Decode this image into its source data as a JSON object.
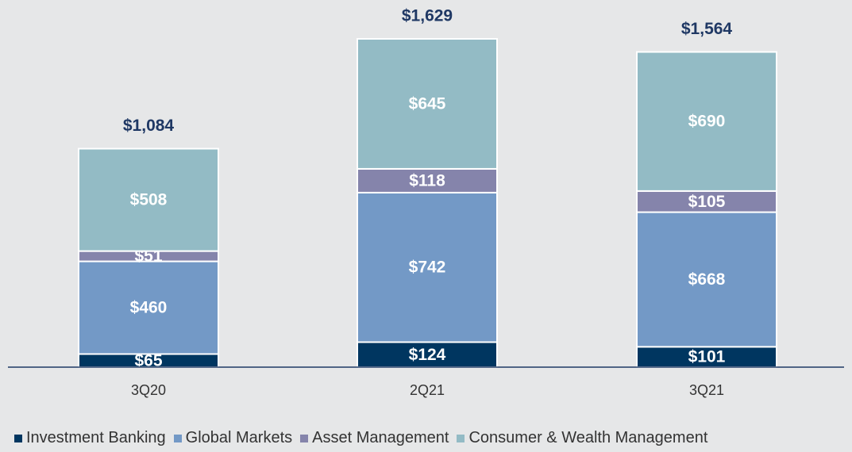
{
  "chart_data": {
    "type": "stacked_bar",
    "categories": [
      "3Q20",
      "2Q21",
      "3Q21"
    ],
    "series": [
      {
        "name": "Investment Banking",
        "color": "#003660",
        "values": [
          65,
          124,
          101
        ],
        "value_labels": [
          "$65",
          "$124",
          "$101"
        ]
      },
      {
        "name": "Global Markets",
        "color": "#7399c6",
        "values": [
          460,
          742,
          668
        ],
        "value_labels": [
          "$460",
          "$742",
          "$668"
        ]
      },
      {
        "name": "Asset Management",
        "color": "#8584ab",
        "values": [
          51,
          118,
          105
        ],
        "value_labels": [
          "$51",
          "$118",
          "$105"
        ]
      },
      {
        "name": "Consumer & Wealth Management",
        "color": "#93bbc5",
        "values": [
          508,
          645,
          690
        ],
        "value_labels": [
          "$508",
          "$645",
          "$690"
        ]
      }
    ],
    "totals": [
      1084,
      1629,
      1564
    ],
    "total_labels": [
      "$1,084",
      "$1,629",
      "$1,564"
    ],
    "legend": "bottom"
  }
}
